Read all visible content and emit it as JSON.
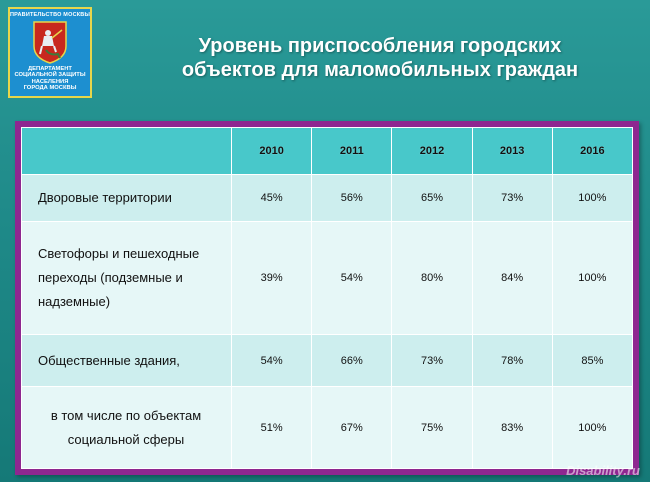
{
  "logo": {
    "top_text": "ПРАВИТЕЛЬСТВО МОСКВЫ",
    "bottom_lines": [
      "ДЕПАРТАМЕНТ",
      "СОЦИАЛЬНОЙ ЗАЩИТЫ",
      "НАСЕЛЕНИЯ",
      "ГОРОДА МОСКВЫ"
    ]
  },
  "title": {
    "line1": "Уровень приспособления городских",
    "line2": "объектов для маломобильных граждан"
  },
  "table": {
    "columns": [
      "",
      "2010",
      "2011",
      "2012",
      "2013",
      "2016"
    ],
    "rows": [
      {
        "label_lines": [
          "Дворовые территории"
        ],
        "values": [
          "45%",
          "56%",
          "65%",
          "73%",
          "100%"
        ]
      },
      {
        "label_lines": [
          "Светофоры и пешеходные",
          "переходы (подземные и",
          "надземные)"
        ],
        "values": [
          "39%",
          "54%",
          "80%",
          "84%",
          "100%"
        ]
      },
      {
        "label_lines": [
          "Общественные здания,"
        ],
        "values": [
          "54%",
          "66%",
          "73%",
          "78%",
          "85%"
        ]
      },
      {
        "label_lines": [
          "в том числе по объектам",
          "социальной сферы"
        ],
        "values": [
          "51%",
          "67%",
          "75%",
          "83%",
          "100%"
        ]
      }
    ]
  },
  "watermark": "Disability.ru",
  "colors": {
    "background": "#1f8a89",
    "frame": "#8e2790",
    "header": "#48c8ca",
    "row_odd": "#cdeeee",
    "row_even": "#e6f7f7"
  }
}
